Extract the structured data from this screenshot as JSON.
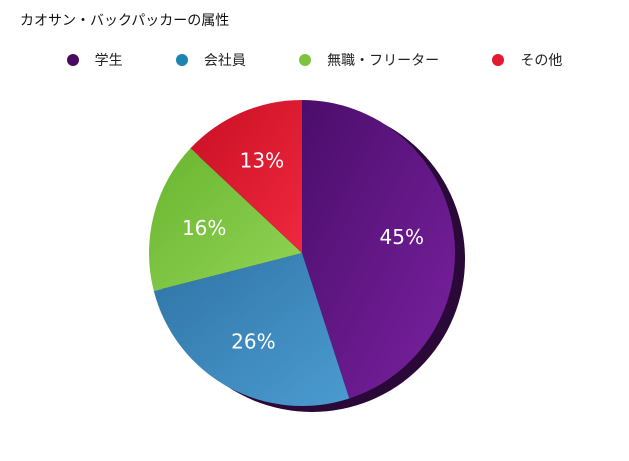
{
  "title": "カオサン・バックパッカーの属性",
  "chart_data": {
    "type": "pie",
    "slices": [
      {
        "label": "学生",
        "value": 45,
        "display": "45%",
        "color": "#6a1a8f"
      },
      {
        "label": "会社員",
        "value": 26,
        "display": "26%",
        "color": "#3b86b8"
      },
      {
        "label": "無職・フリーター",
        "value": 16,
        "display": "16%",
        "color": "#7cc440"
      },
      {
        "label": "その他",
        "value": 13,
        "display": "13%",
        "color": "#e3192f"
      }
    ],
    "legend_position": "top"
  }
}
